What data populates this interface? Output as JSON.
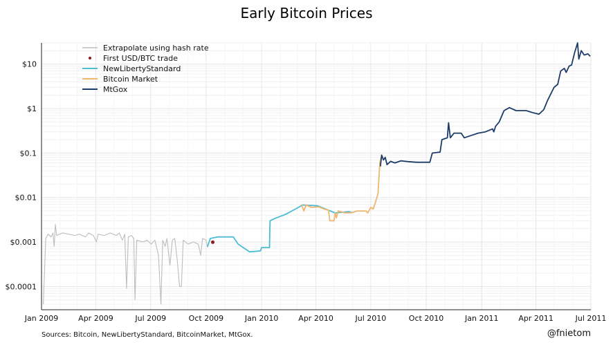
{
  "chart_data": {
    "type": "line",
    "title": "Early Bitcoin Prices",
    "yscale": "log",
    "xlim": [
      "2009-01-01",
      "2011-07-01"
    ],
    "ylim": [
      3e-05,
      30
    ],
    "grid": true,
    "legend_placement": "top-left",
    "x_ticks": [
      {
        "date": "2009-01-01",
        "label": "Jan 2009"
      },
      {
        "date": "2009-04-01",
        "label": "Apr 2009"
      },
      {
        "date": "2009-07-01",
        "label": "Jul 2009"
      },
      {
        "date": "2009-10-01",
        "label": "Oct 2009"
      },
      {
        "date": "2010-01-01",
        "label": "Jan 2010"
      },
      {
        "date": "2010-04-01",
        "label": "Apr 2010"
      },
      {
        "date": "2010-07-01",
        "label": "Jul 2010"
      },
      {
        "date": "2010-10-01",
        "label": "Oct 2010"
      },
      {
        "date": "2011-01-01",
        "label": "Jan 2011"
      },
      {
        "date": "2011-04-01",
        "label": "Apr 2011"
      },
      {
        "date": "2011-07-01",
        "label": "Jul 2011"
      }
    ],
    "y_ticks": [
      {
        "value": 10,
        "label": "$10"
      },
      {
        "value": 1,
        "label": "$1"
      },
      {
        "value": 0.1,
        "label": "$0.1"
      },
      {
        "value": 0.01,
        "label": "$0.01"
      },
      {
        "value": 0.001,
        "label": "$0.001"
      },
      {
        "value": 0.0001,
        "label": "$0.0001"
      }
    ],
    "series": [
      {
        "name": "Extrapolate using hash rate",
        "color": "#bdbdbd",
        "kind": "line",
        "points": [
          [
            "2009-01-04",
            4e-05
          ],
          [
            "2009-01-08",
            0.0012
          ],
          [
            "2009-01-12",
            0.0015
          ],
          [
            "2009-01-17",
            0.0013
          ],
          [
            "2009-01-20",
            0.0016
          ],
          [
            "2009-01-22",
            0.0008
          ],
          [
            "2009-01-24",
            0.0025
          ],
          [
            "2009-01-26",
            0.0014
          ],
          [
            "2009-02-05",
            0.0016
          ],
          [
            "2009-02-15",
            0.0015
          ],
          [
            "2009-02-25",
            0.0014
          ],
          [
            "2009-03-05",
            0.0015
          ],
          [
            "2009-03-15",
            0.0013
          ],
          [
            "2009-03-20",
            0.0016
          ],
          [
            "2009-03-28",
            0.0014
          ],
          [
            "2009-04-02",
            0.001
          ],
          [
            "2009-04-05",
            0.0015
          ],
          [
            "2009-04-15",
            0.0014
          ],
          [
            "2009-04-25",
            0.0016
          ],
          [
            "2009-05-05",
            0.0014
          ],
          [
            "2009-05-10",
            0.0016
          ],
          [
            "2009-05-15",
            0.0011
          ],
          [
            "2009-05-19",
            0.0015
          ],
          [
            "2009-05-22",
            9e-05
          ],
          [
            "2009-05-25",
            0.0013
          ],
          [
            "2009-05-30",
            0.0014
          ],
          [
            "2009-06-03",
            0.0012
          ],
          [
            "2009-06-05",
            5e-05
          ],
          [
            "2009-06-08",
            0.0011
          ],
          [
            "2009-06-18",
            0.001
          ],
          [
            "2009-06-25",
            0.0011
          ],
          [
            "2009-07-02",
            0.0009
          ],
          [
            "2009-07-08",
            0.0011
          ],
          [
            "2009-07-14",
            0.0005
          ],
          [
            "2009-07-18",
            4e-05
          ],
          [
            "2009-07-21",
            0.0011
          ],
          [
            "2009-07-25",
            0.0008
          ],
          [
            "2009-07-28",
            0.0012
          ],
          [
            "2009-08-02",
            0.0003
          ],
          [
            "2009-08-06",
            0.0011
          ],
          [
            "2009-08-10",
            0.0012
          ],
          [
            "2009-08-14",
            0.0004
          ],
          [
            "2009-08-18",
            0.0001
          ],
          [
            "2009-08-21",
            0.0001
          ],
          [
            "2009-08-24",
            0.0011
          ],
          [
            "2009-09-01",
            0.0009
          ],
          [
            "2009-09-10",
            0.001
          ],
          [
            "2009-09-18",
            0.0009
          ],
          [
            "2009-09-22",
            0.0005
          ],
          [
            "2009-09-25",
            0.0012
          ],
          [
            "2009-10-01",
            0.0011
          ],
          [
            "2009-10-03",
            0.0008
          ]
        ]
      },
      {
        "name": "First USD/BTC trade",
        "color": "#8b1a1a",
        "kind": "point",
        "points": [
          [
            "2009-10-12",
            0.00099
          ]
        ]
      },
      {
        "name": "NewLibertyStandard",
        "color": "#4bbcd4",
        "kind": "line",
        "points": [
          [
            "2009-10-03",
            0.00077
          ],
          [
            "2009-10-08",
            0.0012
          ],
          [
            "2009-10-20",
            0.0013
          ],
          [
            "2009-11-01",
            0.0013
          ],
          [
            "2009-11-15",
            0.0013
          ],
          [
            "2009-11-23",
            0.0009
          ],
          [
            "2009-12-12",
            0.0006
          ],
          [
            "2009-12-30",
            0.00063
          ],
          [
            "2010-01-01",
            0.00075
          ],
          [
            "2010-01-14",
            0.00075
          ],
          [
            "2010-01-15",
            0.003
          ],
          [
            "2010-01-21",
            0.0033
          ],
          [
            "2010-02-10",
            0.0042
          ],
          [
            "2010-03-03",
            0.006
          ],
          [
            "2010-03-10",
            0.0068
          ],
          [
            "2010-04-04",
            0.0065
          ],
          [
            "2010-05-03",
            0.0045
          ],
          [
            "2010-05-26",
            0.0048
          ],
          [
            "2010-06-01",
            0.0046
          ]
        ]
      },
      {
        "name": "Bitcoin Market",
        "color": "#f0b66e",
        "kind": "line",
        "points": [
          [
            "2010-03-08",
            0.007
          ],
          [
            "2010-03-12",
            0.005
          ],
          [
            "2010-03-16",
            0.0068
          ],
          [
            "2010-03-25",
            0.006
          ],
          [
            "2010-04-05",
            0.0062
          ],
          [
            "2010-04-15",
            0.0055
          ],
          [
            "2010-04-22",
            0.0052
          ],
          [
            "2010-04-24",
            0.003
          ],
          [
            "2010-05-01",
            0.003
          ],
          [
            "2010-05-03",
            0.0045
          ],
          [
            "2010-05-05",
            0.0035
          ],
          [
            "2010-05-08",
            0.005
          ],
          [
            "2010-05-20",
            0.0045
          ],
          [
            "2010-06-01",
            0.0046
          ],
          [
            "2010-06-08",
            0.005
          ],
          [
            "2010-06-23",
            0.005
          ],
          [
            "2010-06-26",
            0.0045
          ],
          [
            "2010-07-01",
            0.006
          ],
          [
            "2010-07-05",
            0.0055
          ],
          [
            "2010-07-09",
            0.008
          ],
          [
            "2010-07-13",
            0.012
          ],
          [
            "2010-07-16",
            0.06
          ],
          [
            "2010-07-18",
            0.08
          ]
        ]
      },
      {
        "name": "MtGox",
        "color": "#1b3b68",
        "kind": "line",
        "points": [
          [
            "2010-07-17",
            0.05
          ],
          [
            "2010-07-19",
            0.09
          ],
          [
            "2010-07-22",
            0.07
          ],
          [
            "2010-07-25",
            0.08
          ],
          [
            "2010-07-28",
            0.055
          ],
          [
            "2010-08-03",
            0.065
          ],
          [
            "2010-08-10",
            0.06
          ],
          [
            "2010-08-20",
            0.067
          ],
          [
            "2010-09-01",
            0.064
          ],
          [
            "2010-09-15",
            0.062
          ],
          [
            "2010-10-07",
            0.062
          ],
          [
            "2010-10-11",
            0.1
          ],
          [
            "2010-10-24",
            0.105
          ],
          [
            "2010-10-27",
            0.2
          ],
          [
            "2010-11-05",
            0.22
          ],
          [
            "2010-11-07",
            0.48
          ],
          [
            "2010-11-10",
            0.22
          ],
          [
            "2010-11-16",
            0.28
          ],
          [
            "2010-11-28",
            0.28
          ],
          [
            "2010-12-03",
            0.22
          ],
          [
            "2010-12-15",
            0.25
          ],
          [
            "2010-12-26",
            0.28
          ],
          [
            "2011-01-07",
            0.3
          ],
          [
            "2011-01-19",
            0.35
          ],
          [
            "2011-01-21",
            0.3
          ],
          [
            "2011-01-24",
            0.4
          ],
          [
            "2011-01-30",
            0.5
          ],
          [
            "2011-02-07",
            0.9
          ],
          [
            "2011-02-16",
            1.05
          ],
          [
            "2011-02-27",
            0.9
          ],
          [
            "2011-03-16",
            0.9
          ],
          [
            "2011-03-28",
            0.8
          ],
          [
            "2011-04-06",
            0.75
          ],
          [
            "2011-04-14",
            0.95
          ],
          [
            "2011-04-20",
            1.5
          ],
          [
            "2011-05-01",
            3
          ],
          [
            "2011-05-07",
            3.5
          ],
          [
            "2011-05-12",
            7
          ],
          [
            "2011-05-18",
            8
          ],
          [
            "2011-05-21",
            6.5
          ],
          [
            "2011-05-26",
            9
          ],
          [
            "2011-05-30",
            9.5
          ],
          [
            "2011-06-04",
            18
          ],
          [
            "2011-06-09",
            30
          ],
          [
            "2011-06-11",
            13
          ],
          [
            "2011-06-15",
            20
          ],
          [
            "2011-06-20",
            16
          ],
          [
            "2011-06-26",
            17
          ],
          [
            "2011-06-30",
            15
          ]
        ]
      }
    ],
    "footnote": "Sources: Bitcoin, NewLibertyStandard, BitcoinMarket, MtGox.",
    "credit": "@fnietom"
  }
}
